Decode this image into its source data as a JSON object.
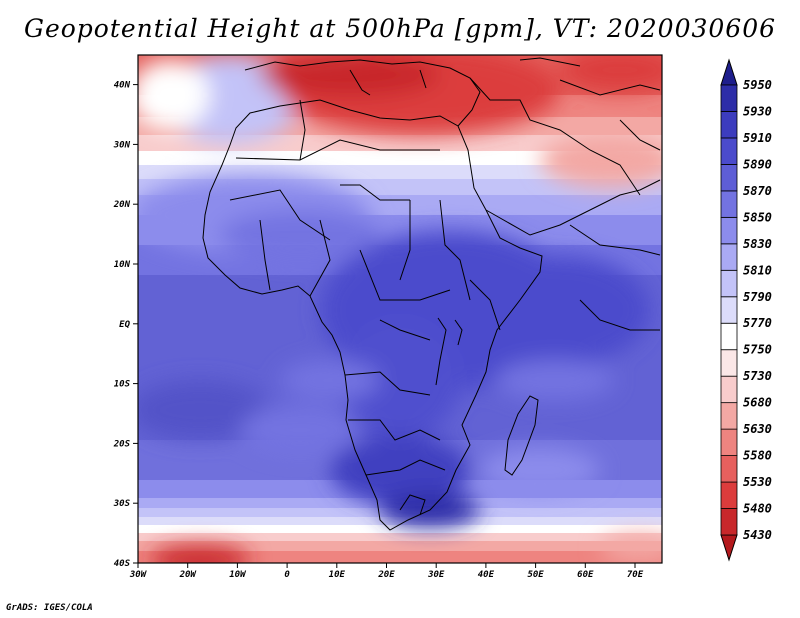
{
  "title": "Geopotential Height at 500hPa [gpm], VT: 2020030606",
  "credit": "GrADS: IGES/COLA",
  "map": {
    "lon_range": [
      -30,
      75
    ],
    "lat_range": [
      -40,
      45
    ],
    "lon_ticks": [
      "30W",
      "20W",
      "10W",
      "0",
      "10E",
      "20E",
      "30E",
      "40E",
      "50E",
      "60E",
      "70E"
    ],
    "lat_ticks": [
      "40S",
      "30S",
      "20S",
      "10S",
      "EQ",
      "10N",
      "20N",
      "30N",
      "40N"
    ]
  },
  "colorbar": {
    "labels": [
      "5430",
      "5480",
      "5530",
      "5580",
      "5630",
      "5680",
      "5730",
      "5750",
      "5770",
      "5790",
      "5810",
      "5830",
      "5850",
      "5870",
      "5890",
      "5910",
      "5930",
      "5950"
    ],
    "colors": [
      "#b4191d",
      "#c8282b",
      "#dc3c3c",
      "#e6605e",
      "#ee8480",
      "#f3a8a4",
      "#f8cccc",
      "#fbe7e7",
      "#ffffff",
      "#dcdcfa",
      "#c3c3f8",
      "#aaaaf4",
      "#8c8cec",
      "#7373e1",
      "#5e5ed6",
      "#4b4bcc",
      "#3c3cbe",
      "#2d2da8",
      "#1e1e8c"
    ]
  },
  "field": {
    "bands": [
      {
        "colors": [
          "#c8282b",
          "#dc3c3c",
          "#e6605e"
        ],
        "desc": "north"
      },
      {
        "colors": [
          "#6a6ad8"
        ],
        "desc": "tropics"
      },
      {
        "colors": [
          "#f3a8a4"
        ],
        "desc": "south"
      }
    ]
  }
}
